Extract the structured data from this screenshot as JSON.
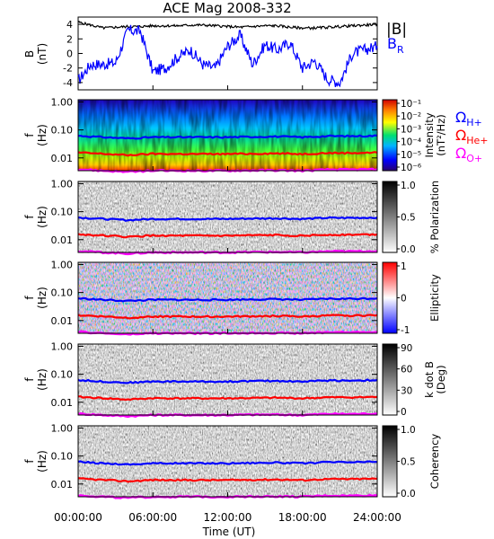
{
  "title": "ACE Mag 2008-332",
  "time_axis": {
    "xlabel": "Time (UT)",
    "ticks": [
      "00:00:00",
      "06:00:00",
      "12:00:00",
      "18:00:00",
      "24:00:00"
    ],
    "range_hours": [
      0,
      24
    ]
  },
  "freq_axis": {
    "label_f": "f",
    "label_unit": "(Hz)",
    "ticks": [
      "1.00",
      "0.10",
      "0.01"
    ],
    "range_hz": [
      0.0035,
      1.2
    ],
    "scale": "log"
  },
  "field_panel": {
    "ylabel_b": "B",
    "ylabel_unit": "(nT)",
    "yticks": [
      "4",
      "2",
      "0",
      "-2",
      "-4"
    ],
    "ylim": [
      -5,
      5
    ],
    "legend_b": "|B|",
    "legend_br_main": "B",
    "legend_br_sub": "R",
    "colors": {
      "B": "#000000",
      "BR": "#0000ff"
    }
  },
  "ion_legend": {
    "symbol": "Ω",
    "entries": [
      {
        "sub": "H+",
        "color": "#0000ff"
      },
      {
        "sub": "He+",
        "color": "#ff0000"
      },
      {
        "sub": "O+",
        "color": "#ff00ff"
      }
    ]
  },
  "panels": [
    {
      "key": "intensity",
      "colorbar_title": "Intensity",
      "colorbar_unit": "(nT²/Hz)",
      "colorbar_ticks": [
        "10⁻¹",
        "10⁻²",
        "10⁻³",
        "10⁻⁴",
        "10⁻⁵",
        "10⁻⁶"
      ]
    },
    {
      "key": "polarization",
      "colorbar_title": "% Polarization",
      "colorbar_unit": "",
      "colorbar_ticks": [
        "1.0",
        "0.5",
        "0.0"
      ]
    },
    {
      "key": "ellipticity",
      "colorbar_title": "Ellipticity",
      "colorbar_unit": "",
      "colorbar_ticks": [
        "1",
        "0",
        "-1"
      ]
    },
    {
      "key": "kdotb",
      "colorbar_title": "k dot B",
      "colorbar_unit": "(Deg)",
      "colorbar_ticks": [
        "90",
        "60",
        "30",
        "0"
      ]
    },
    {
      "key": "coherency",
      "colorbar_title": "Coherency",
      "colorbar_unit": "",
      "colorbar_ticks": [
        "1.0",
        "0.5",
        "0.0"
      ]
    }
  ],
  "chart_data": [
    {
      "type": "line",
      "title": "ACE Mag 2008-332",
      "ylabel": "B (nT)",
      "xlabel": "Time (UT)",
      "x_hours": [
        0,
        1,
        2,
        3,
        4,
        5,
        6,
        7,
        8,
        9,
        10,
        11,
        12,
        13,
        14,
        15,
        16,
        17,
        18,
        19,
        20,
        21,
        22,
        23,
        24
      ],
      "ylim": [
        -5,
        5
      ],
      "series": [
        {
          "name": "|B|",
          "values": [
            4.3,
            3.9,
            3.5,
            3.6,
            3.7,
            3.7,
            3.8,
            3.8,
            3.8,
            3.9,
            3.9,
            3.8,
            3.7,
            3.6,
            3.7,
            3.8,
            3.8,
            3.6,
            3.5,
            3.5,
            3.6,
            3.7,
            3.8,
            3.9,
            4.0
          ]
        },
        {
          "name": "BR",
          "values": [
            -3.8,
            -1.5,
            -1.5,
            -1.3,
            3.2,
            3.0,
            -2.5,
            -2.0,
            -0.5,
            0.5,
            -1.5,
            -2.0,
            1.0,
            2.5,
            -1.5,
            1.2,
            0.5,
            1.5,
            -2.0,
            -1.0,
            -3.5,
            -4.0,
            0.0,
            0.5,
            1.0
          ]
        }
      ]
    },
    {
      "type": "line",
      "yscale": "log",
      "ylabel": "f (Hz)",
      "xlabel": "Time (UT)",
      "x_hours": [
        0,
        2,
        4,
        6,
        8,
        10,
        12,
        14,
        16,
        18,
        20,
        22,
        24
      ],
      "ylim": [
        0.0035,
        1.2
      ],
      "series": [
        {
          "name": "ΩH+",
          "values": [
            0.062,
            0.055,
            0.05,
            0.055,
            0.055,
            0.055,
            0.055,
            0.057,
            0.058,
            0.055,
            0.06,
            0.06,
            0.062
          ]
        },
        {
          "name": "ΩHe+",
          "values": [
            0.0155,
            0.014,
            0.0125,
            0.014,
            0.0138,
            0.0138,
            0.0138,
            0.0142,
            0.0145,
            0.0138,
            0.015,
            0.015,
            0.0155
          ]
        },
        {
          "name": "ΩO+",
          "values": [
            0.0039,
            0.0035,
            0.0032,
            0.0035,
            0.0035,
            0.0035,
            0.0035,
            0.0036,
            0.0036,
            0.0035,
            0.0038,
            0.0038,
            0.0039
          ]
        }
      ]
    }
  ]
}
